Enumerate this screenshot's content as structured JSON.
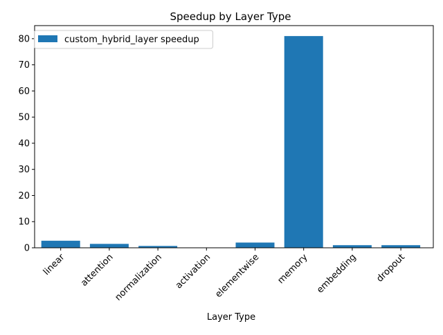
{
  "chart_data": {
    "type": "bar",
    "title": "Speedup by Layer Type",
    "xlabel": "Layer Type",
    "ylabel": "",
    "categories": [
      "linear",
      "attention",
      "normalization",
      "activation",
      "elementwise",
      "memory",
      "embedding",
      "dropout"
    ],
    "series": [
      {
        "name": "custom_hybrid_layer speedup",
        "color": "#1f77b4",
        "values": [
          2.7,
          1.5,
          0.7,
          0.0,
          2.0,
          81.0,
          1.0,
          1.0
        ]
      }
    ],
    "ylim": [
      0,
      85
    ],
    "yticks": [
      0,
      10,
      20,
      30,
      40,
      50,
      60,
      70,
      80
    ],
    "legend_position": "top-left",
    "grid": false,
    "xtick_rotation": 45
  }
}
